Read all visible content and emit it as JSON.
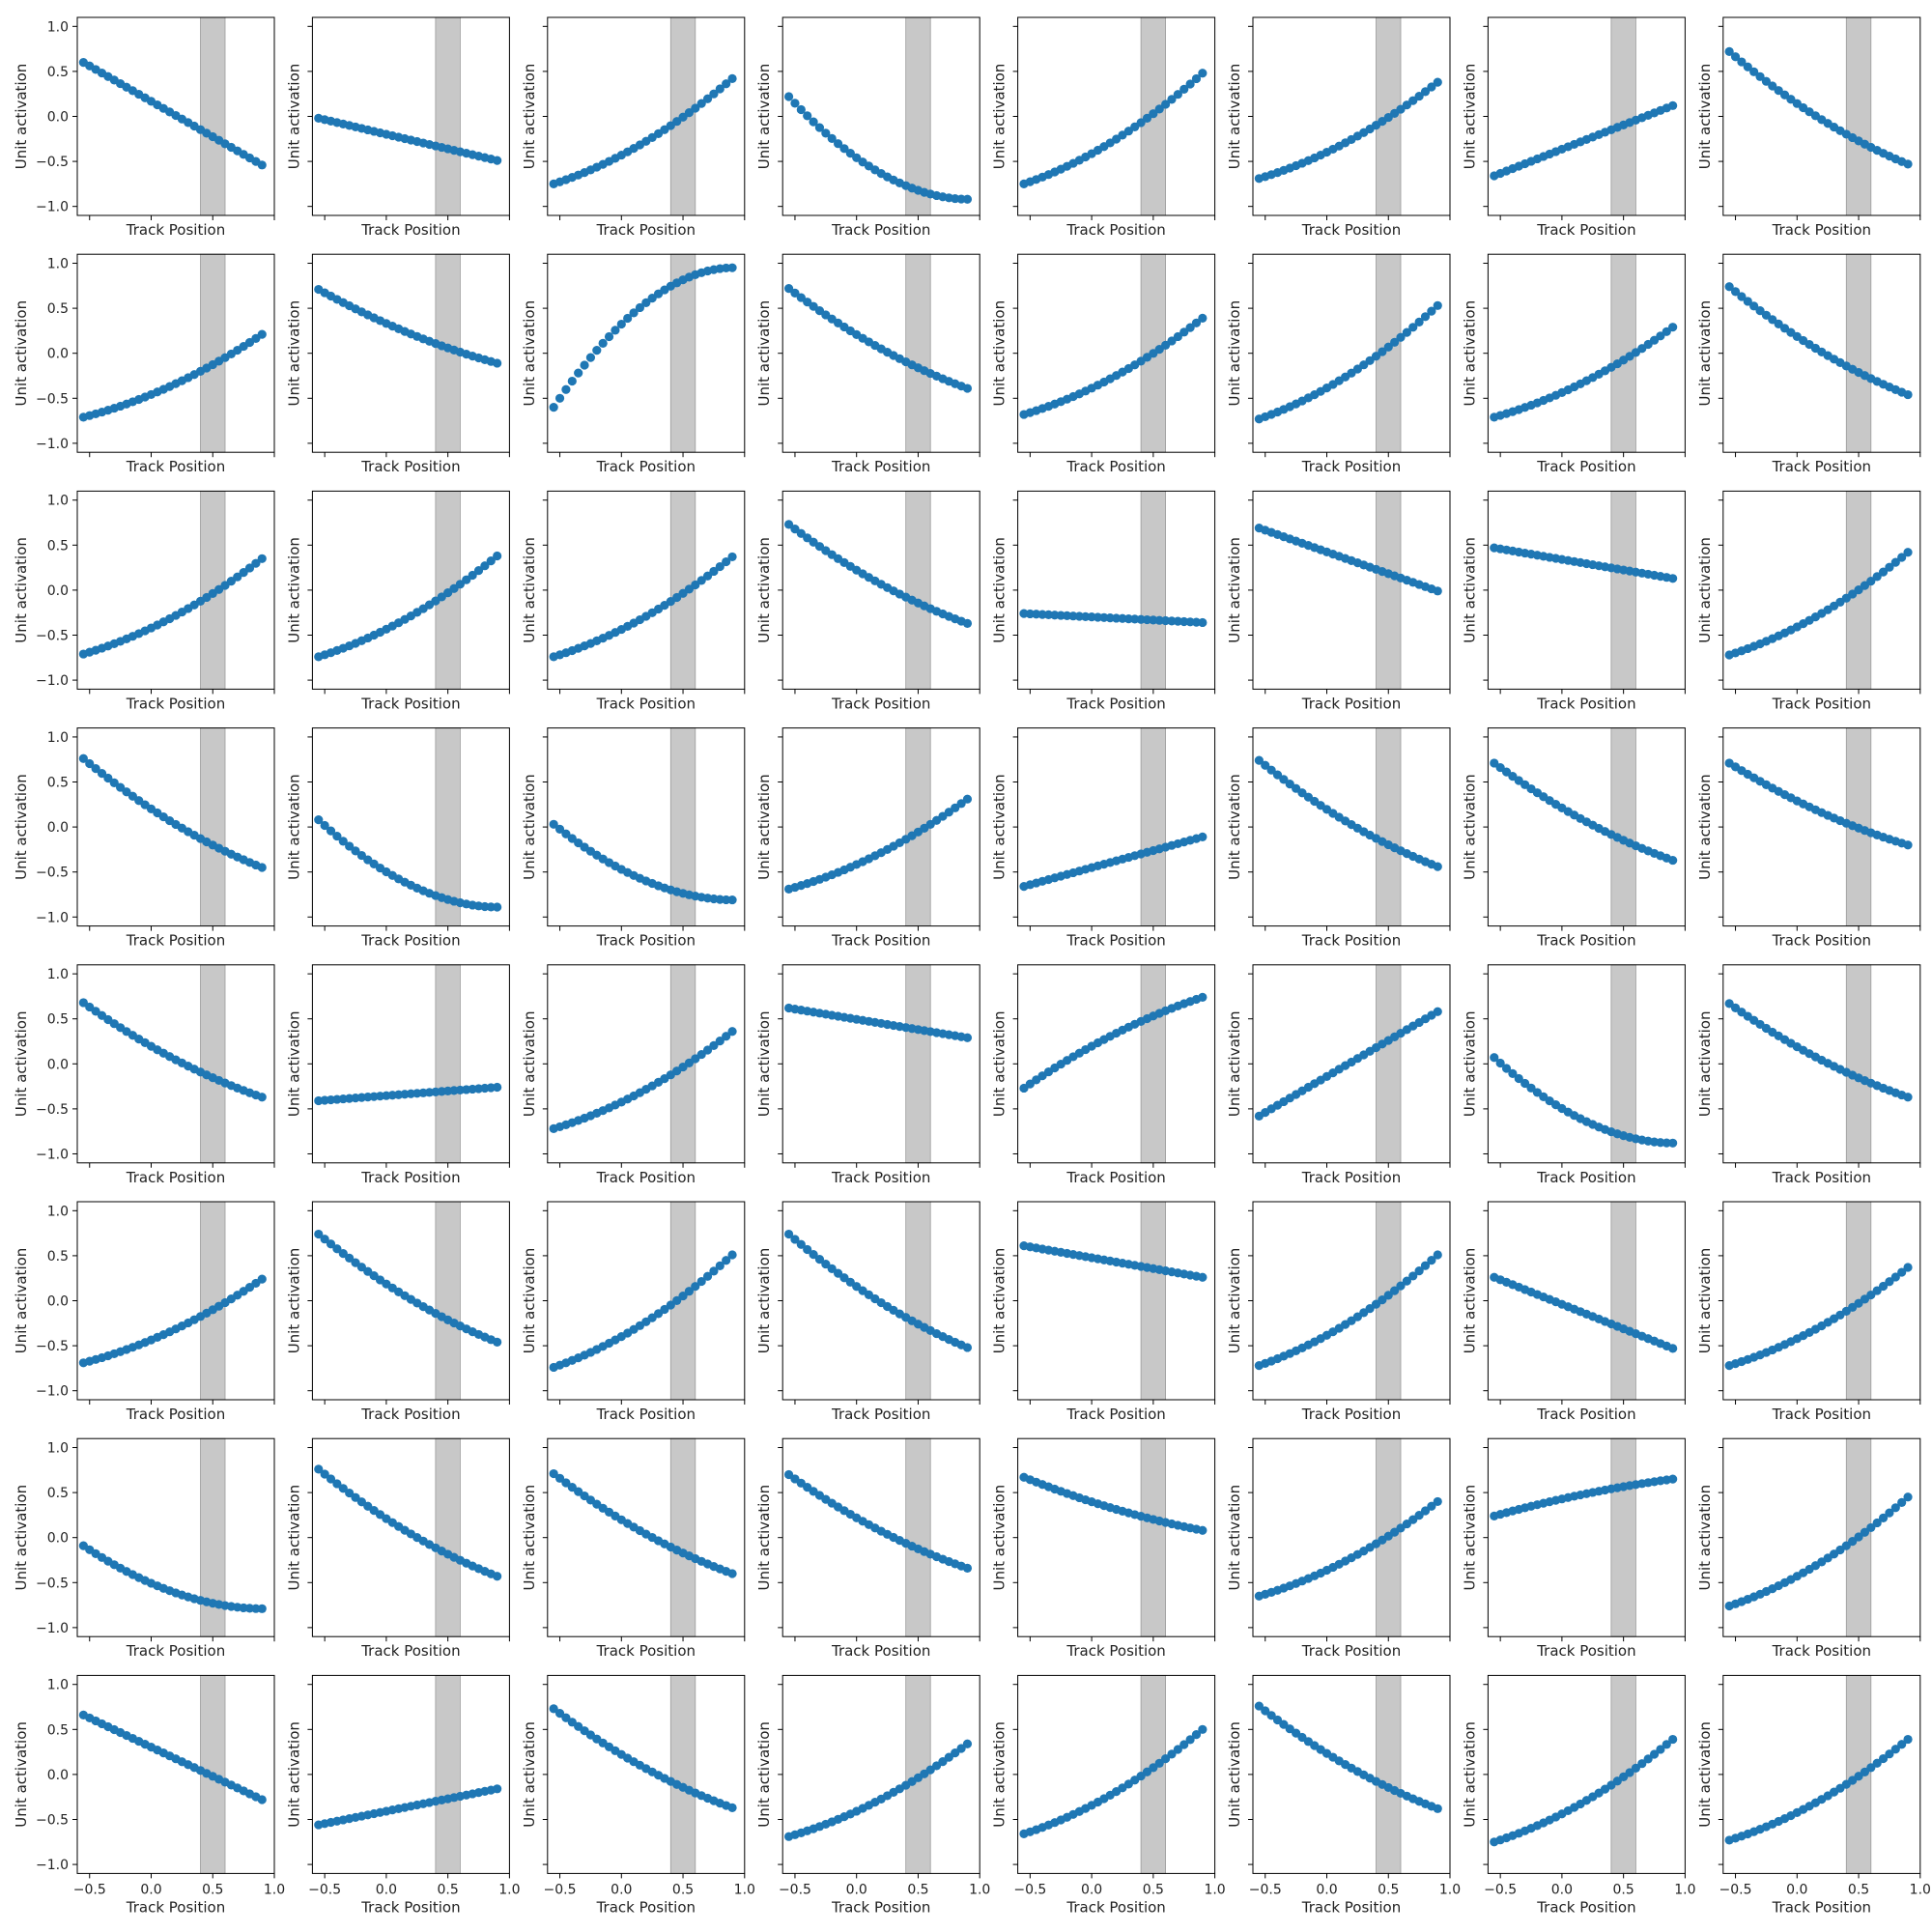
{
  "figure": {
    "rows": 8,
    "cols": 8
  },
  "chart_data": {
    "type": "scatter",
    "xlabel": "Track Position",
    "ylabel": "Unit activation",
    "xlim": [
      -0.6,
      1.0
    ],
    "ylim": [
      -1.1,
      1.1
    ],
    "xticks": [
      -0.5,
      0.0,
      0.5,
      1.0
    ],
    "xtick_labels": [
      "−0.5",
      "0.0",
      "0.5",
      "1.0"
    ],
    "yticks": [
      -1.0,
      -0.5,
      0.0,
      0.5,
      1.0
    ],
    "ytick_labels": [
      "−1.0",
      "−0.5",
      "0.0",
      "0.5",
      "1.0"
    ],
    "highlight_band": [
      0.4,
      0.6
    ],
    "marker_color": "#1f77b4",
    "band_color": "#c8c8c8",
    "x_range": [
      -0.55,
      0.9
    ],
    "points_per_panel": 30,
    "panels": [
      {
        "name": "r1c1",
        "y_start": 0.6,
        "y_end": -0.54,
        "shape": "linear"
      },
      {
        "name": "r1c2",
        "y_start": -0.02,
        "y_end": -0.49,
        "shape": "linear"
      },
      {
        "name": "r1c3",
        "y_start": -0.75,
        "y_end": 0.42,
        "shape": "convex"
      },
      {
        "name": "r1c4",
        "y_start": 0.22,
        "y_end": -0.92,
        "shape": "saturate"
      },
      {
        "name": "r1c5",
        "y_start": -0.75,
        "y_end": 0.48,
        "shape": "convex"
      },
      {
        "name": "r1c6",
        "y_start": -0.69,
        "y_end": 0.38,
        "shape": "convex"
      },
      {
        "name": "r1c7",
        "y_start": -0.66,
        "y_end": 0.12,
        "shape": "linear"
      },
      {
        "name": "r1c8",
        "y_start": 0.72,
        "y_end": -0.53,
        "shape": "concave"
      },
      {
        "name": "r2c1",
        "y_start": -0.71,
        "y_end": 0.21,
        "shape": "convex"
      },
      {
        "name": "r2c2",
        "y_start": 0.71,
        "y_end": -0.11,
        "shape": "concave"
      },
      {
        "name": "r2c3",
        "y_start": -0.6,
        "y_end": 0.95,
        "shape": "saturate"
      },
      {
        "name": "r2c4",
        "y_start": 0.72,
        "y_end": -0.39,
        "shape": "concave"
      },
      {
        "name": "r2c5",
        "y_start": -0.68,
        "y_end": 0.39,
        "shape": "convex"
      },
      {
        "name": "r2c6",
        "y_start": -0.73,
        "y_end": 0.53,
        "shape": "convex"
      },
      {
        "name": "r2c7",
        "y_start": -0.71,
        "y_end": 0.29,
        "shape": "convex"
      },
      {
        "name": "r2c8",
        "y_start": 0.74,
        "y_end": -0.46,
        "shape": "concave"
      },
      {
        "name": "r3c1",
        "y_start": -0.71,
        "y_end": 0.35,
        "shape": "convex"
      },
      {
        "name": "r3c2",
        "y_start": -0.74,
        "y_end": 0.38,
        "shape": "convex"
      },
      {
        "name": "r3c3",
        "y_start": -0.74,
        "y_end": 0.37,
        "shape": "convex"
      },
      {
        "name": "r3c4",
        "y_start": 0.73,
        "y_end": -0.37,
        "shape": "concave"
      },
      {
        "name": "r3c5",
        "y_start": -0.26,
        "y_end": -0.36,
        "shape": "linear"
      },
      {
        "name": "r3c6",
        "y_start": 0.69,
        "y_end": -0.01,
        "shape": "linear"
      },
      {
        "name": "r3c7",
        "y_start": 0.47,
        "y_end": 0.13,
        "shape": "linear"
      },
      {
        "name": "r3c8",
        "y_start": -0.72,
        "y_end": 0.42,
        "shape": "convex"
      },
      {
        "name": "r4c1",
        "y_start": 0.76,
        "y_end": -0.45,
        "shape": "concave"
      },
      {
        "name": "r4c2",
        "y_start": 0.08,
        "y_end": -0.89,
        "shape": "saturate"
      },
      {
        "name": "r4c3",
        "y_start": 0.03,
        "y_end": -0.81,
        "shape": "saturate"
      },
      {
        "name": "r4c4",
        "y_start": -0.69,
        "y_end": 0.31,
        "shape": "convex"
      },
      {
        "name": "r4c5",
        "y_start": -0.66,
        "y_end": -0.11,
        "shape": "linear"
      },
      {
        "name": "r4c6",
        "y_start": 0.74,
        "y_end": -0.44,
        "shape": "concave"
      },
      {
        "name": "r4c7",
        "y_start": 0.71,
        "y_end": -0.37,
        "shape": "concave"
      },
      {
        "name": "r4c8",
        "y_start": 0.71,
        "y_end": -0.2,
        "shape": "concave"
      },
      {
        "name": "r5c1",
        "y_start": 0.68,
        "y_end": -0.37,
        "shape": "concave"
      },
      {
        "name": "r5c2",
        "y_start": -0.41,
        "y_end": -0.26,
        "shape": "linear"
      },
      {
        "name": "r5c3",
        "y_start": -0.72,
        "y_end": 0.36,
        "shape": "convex"
      },
      {
        "name": "r5c4",
        "y_start": 0.62,
        "y_end": 0.29,
        "shape": "linear"
      },
      {
        "name": "r5c5",
        "y_start": -0.27,
        "y_end": 0.74,
        "shape": "concave"
      },
      {
        "name": "r5c6",
        "y_start": -0.58,
        "y_end": 0.58,
        "shape": "linear"
      },
      {
        "name": "r5c7",
        "y_start": 0.07,
        "y_end": -0.88,
        "shape": "saturate"
      },
      {
        "name": "r5c8",
        "y_start": 0.67,
        "y_end": -0.37,
        "shape": "concave"
      },
      {
        "name": "r6c1",
        "y_start": -0.69,
        "y_end": 0.24,
        "shape": "convex"
      },
      {
        "name": "r6c2",
        "y_start": 0.74,
        "y_end": -0.46,
        "shape": "concave"
      },
      {
        "name": "r6c3",
        "y_start": -0.74,
        "y_end": 0.51,
        "shape": "convex"
      },
      {
        "name": "r6c4",
        "y_start": 0.74,
        "y_end": -0.52,
        "shape": "concave"
      },
      {
        "name": "r6c5",
        "y_start": 0.61,
        "y_end": 0.26,
        "shape": "linear"
      },
      {
        "name": "r6c6",
        "y_start": -0.72,
        "y_end": 0.51,
        "shape": "convex"
      },
      {
        "name": "r6c7",
        "y_start": 0.26,
        "y_end": -0.53,
        "shape": "linear"
      },
      {
        "name": "r6c8",
        "y_start": -0.72,
        "y_end": 0.37,
        "shape": "convex"
      },
      {
        "name": "r7c1",
        "y_start": -0.09,
        "y_end": -0.79,
        "shape": "saturate"
      },
      {
        "name": "r7c2",
        "y_start": 0.76,
        "y_end": -0.43,
        "shape": "concave"
      },
      {
        "name": "r7c3",
        "y_start": 0.71,
        "y_end": -0.4,
        "shape": "concave"
      },
      {
        "name": "r7c4",
        "y_start": 0.7,
        "y_end": -0.34,
        "shape": "concave"
      },
      {
        "name": "r7c5",
        "y_start": 0.67,
        "y_end": 0.08,
        "shape": "concave"
      },
      {
        "name": "r7c6",
        "y_start": -0.65,
        "y_end": 0.4,
        "shape": "convex"
      },
      {
        "name": "r7c7",
        "y_start": 0.24,
        "y_end": 0.65,
        "shape": "concave"
      },
      {
        "name": "r7c8",
        "y_start": -0.76,
        "y_end": 0.45,
        "shape": "convex"
      },
      {
        "name": "r8c1",
        "y_start": 0.66,
        "y_end": -0.28,
        "shape": "linear"
      },
      {
        "name": "r8c2",
        "y_start": -0.56,
        "y_end": -0.16,
        "shape": "linear"
      },
      {
        "name": "r8c3",
        "y_start": 0.73,
        "y_end": -0.37,
        "shape": "concave"
      },
      {
        "name": "r8c4",
        "y_start": -0.69,
        "y_end": 0.34,
        "shape": "convex"
      },
      {
        "name": "r8c5",
        "y_start": -0.66,
        "y_end": 0.5,
        "shape": "convex"
      },
      {
        "name": "r8c6",
        "y_start": 0.76,
        "y_end": -0.38,
        "shape": "concave"
      },
      {
        "name": "r8c7",
        "y_start": -0.75,
        "y_end": 0.39,
        "shape": "convex"
      },
      {
        "name": "r8c8",
        "y_start": -0.73,
        "y_end": 0.39,
        "shape": "convex"
      }
    ]
  }
}
